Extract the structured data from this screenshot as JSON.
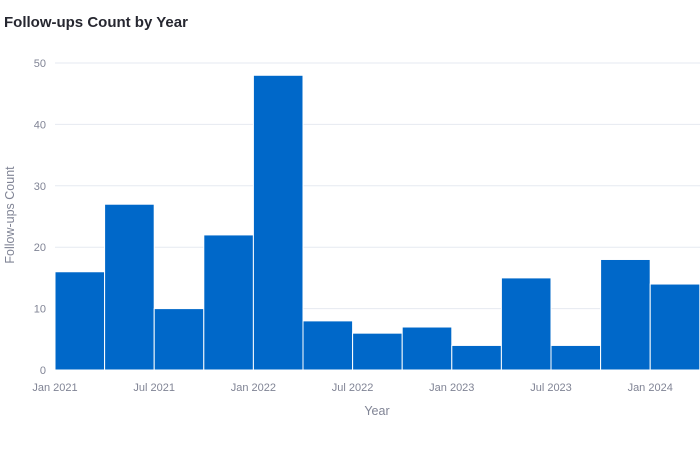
{
  "chart_data": {
    "type": "bar",
    "title": "Follow-ups Count by Year",
    "xlabel": "Year",
    "ylabel": "Follow-ups Count",
    "color": "#0068c9",
    "ylim": [
      0,
      50
    ],
    "yticks": [
      0,
      10,
      20,
      30,
      40,
      50
    ],
    "xlim": [
      "2021-01-01",
      "2024-04-01"
    ],
    "xtick_labels": [
      "Jan 2021",
      "Jul 2021",
      "Jan 2022",
      "Jul 2022",
      "Jan 2023",
      "Jul 2023",
      "Jan 2024"
    ],
    "grid": true,
    "bins": [
      {
        "start": "2021-01-01",
        "end": "2021-04-01",
        "value": 16
      },
      {
        "start": "2021-04-01",
        "end": "2021-07-01",
        "value": 27
      },
      {
        "start": "2021-07-01",
        "end": "2021-10-01",
        "value": 10
      },
      {
        "start": "2021-10-01",
        "end": "2022-01-01",
        "value": 22
      },
      {
        "start": "2022-01-01",
        "end": "2022-04-01",
        "value": 48
      },
      {
        "start": "2022-04-01",
        "end": "2022-07-01",
        "value": 8
      },
      {
        "start": "2022-07-01",
        "end": "2022-10-01",
        "value": 6
      },
      {
        "start": "2022-10-01",
        "end": "2023-01-01",
        "value": 7
      },
      {
        "start": "2023-01-01",
        "end": "2023-04-01",
        "value": 4
      },
      {
        "start": "2023-04-01",
        "end": "2023-07-01",
        "value": 15
      },
      {
        "start": "2023-07-01",
        "end": "2023-10-01",
        "value": 4
      },
      {
        "start": "2023-10-01",
        "end": "2024-01-01",
        "value": 18
      },
      {
        "start": "2024-01-01",
        "end": "2024-04-01",
        "value": 14
      }
    ]
  }
}
